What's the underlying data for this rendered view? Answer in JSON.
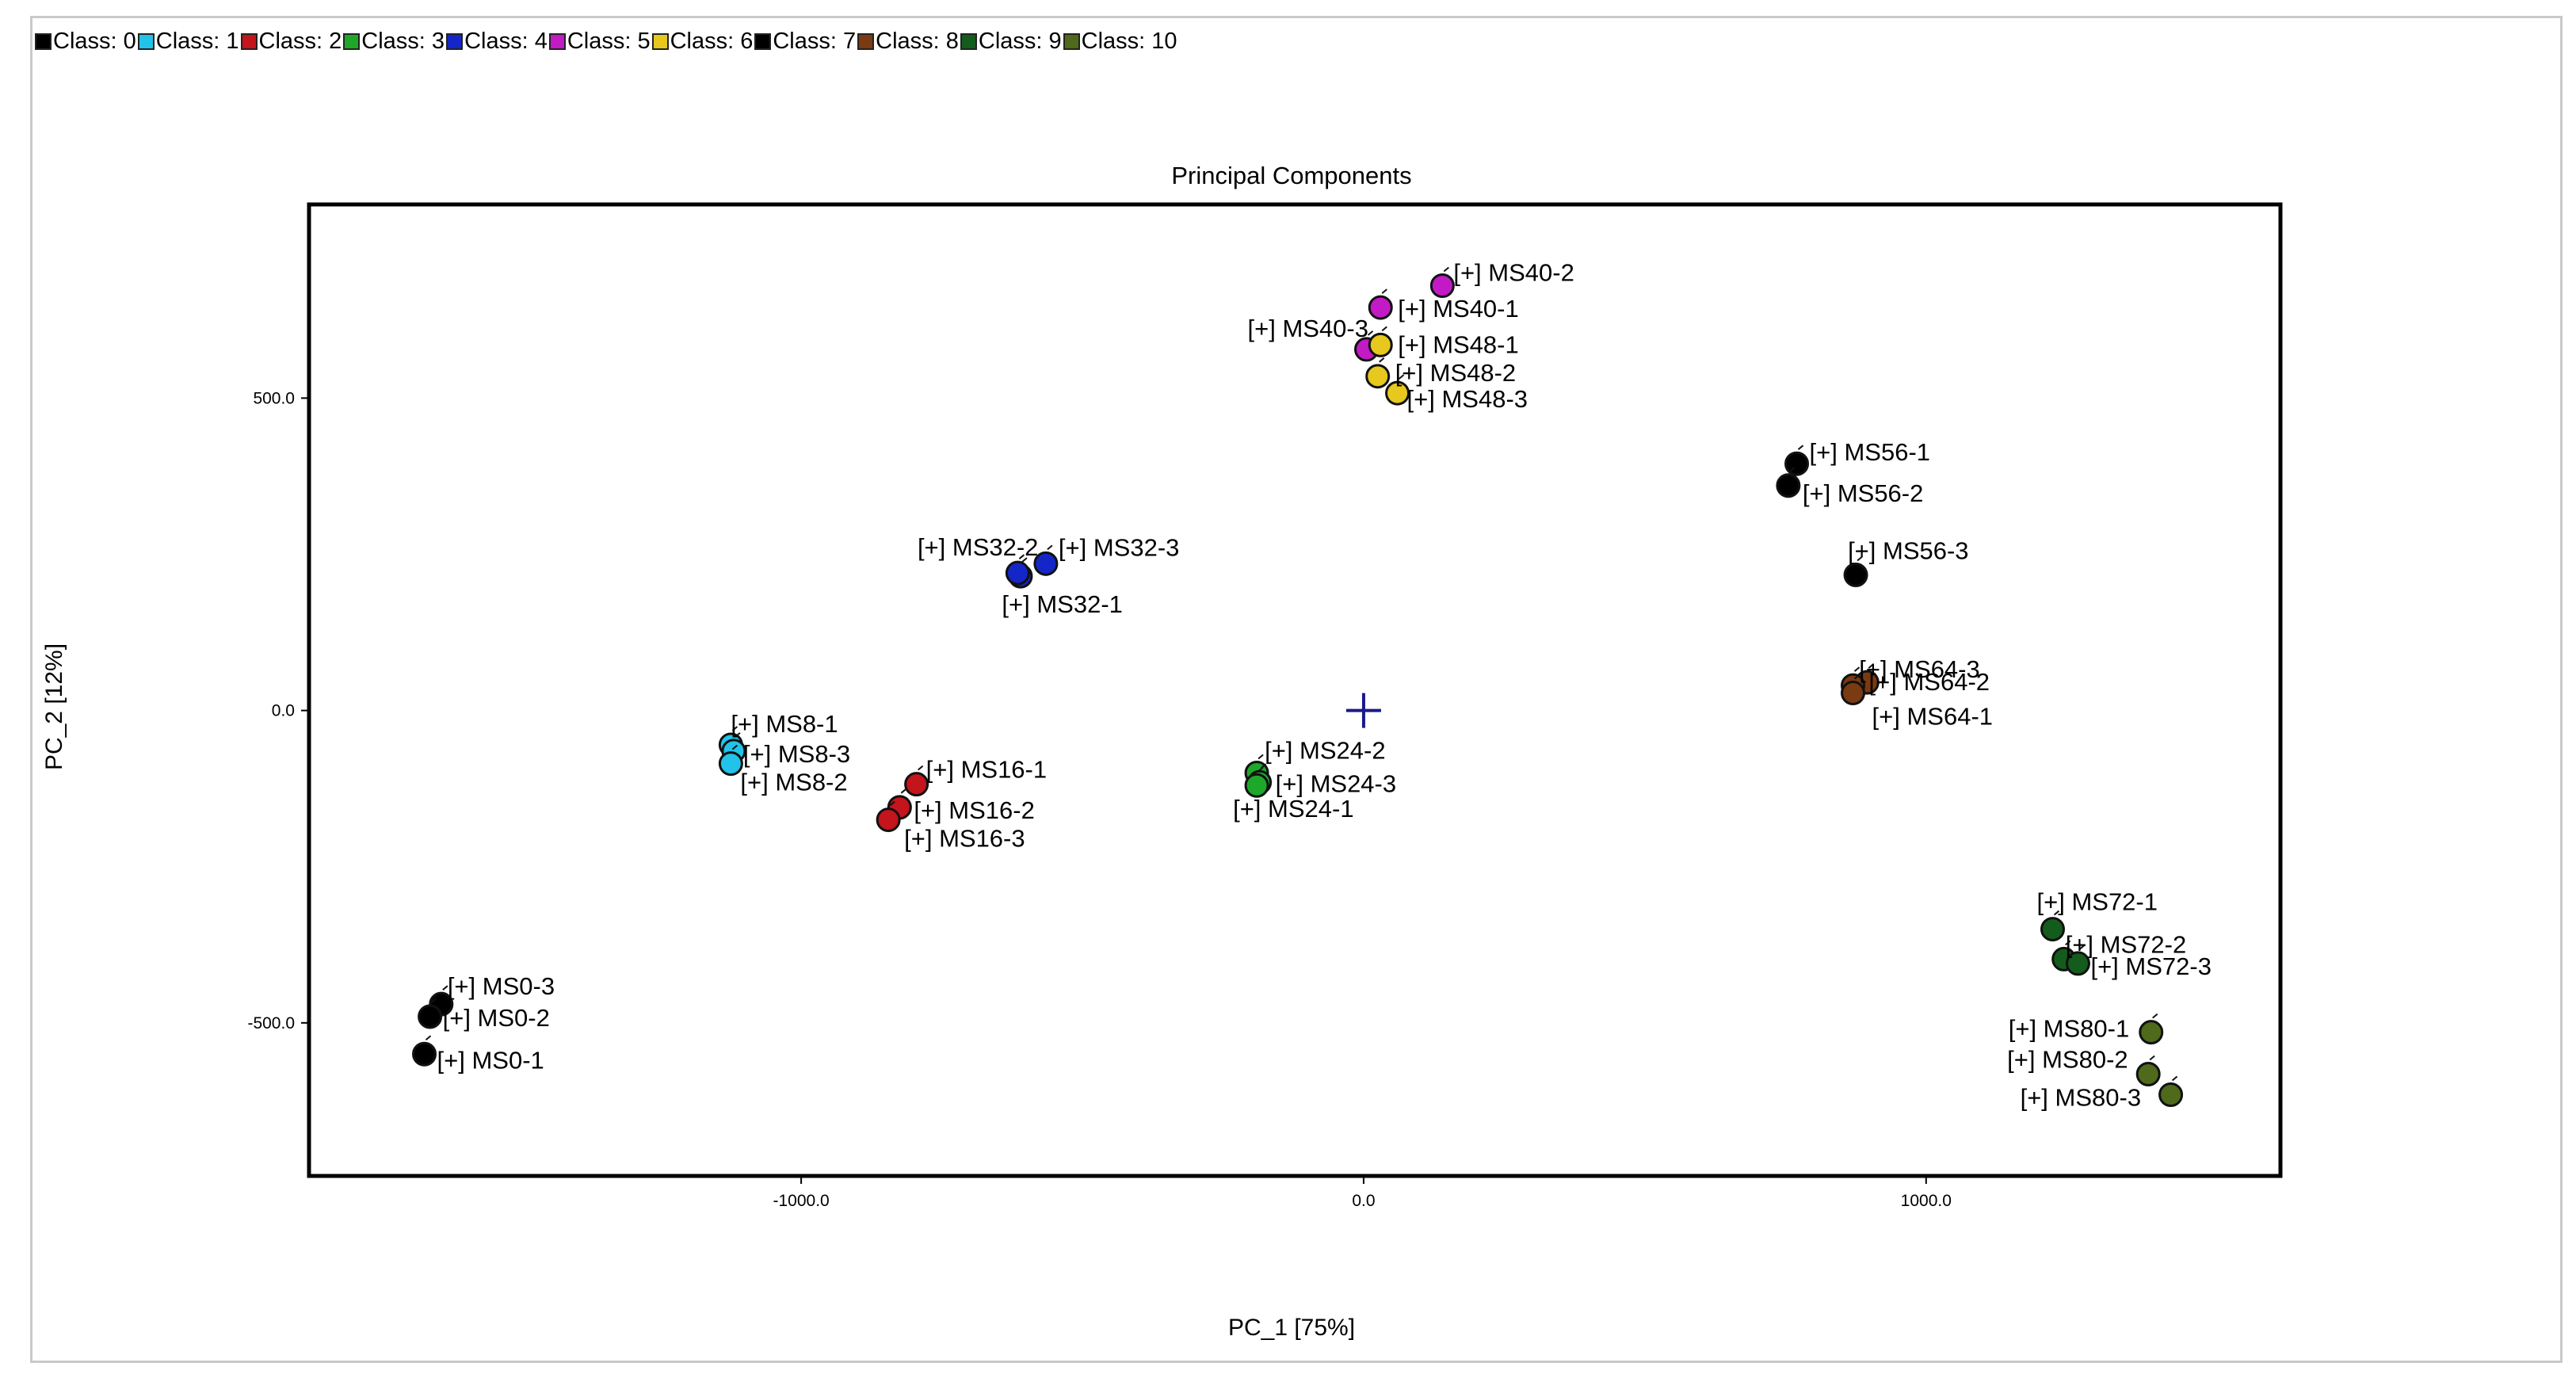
{
  "legend": {
    "items": [
      {
        "label": "Class: 0",
        "color": "#000000"
      },
      {
        "label": "Class: 1",
        "color": "#22c3e8"
      },
      {
        "label": "Class: 2",
        "color": "#c4141c"
      },
      {
        "label": "Class: 3",
        "color": "#1ea82a"
      },
      {
        "label": "Class: 4",
        "color": "#1526c8"
      },
      {
        "label": "Class: 5",
        "color": "#c21ac4"
      },
      {
        "label": "Class: 6",
        "color": "#e6c81e"
      },
      {
        "label": "Class: 7",
        "color": "#000000"
      },
      {
        "label": "Class: 8",
        "color": "#7a3a12"
      },
      {
        "label": "Class: 9",
        "color": "#145c1c"
      },
      {
        "label": "Class: 10",
        "color": "#4e6a1a"
      }
    ]
  },
  "chart_data": {
    "type": "scatter",
    "title": "Principal Components",
    "xlabel": "PC_1 [75%]",
    "ylabel": "PC_2 [12%]",
    "xlim": [
      -1875,
      1630
    ],
    "ylim": [
      -745,
      810
    ],
    "xticks": [
      {
        "value": -1000,
        "label": "-1000.0"
      },
      {
        "value": 0,
        "label": "0.0"
      },
      {
        "value": 1000,
        "label": "1000.0"
      }
    ],
    "yticks": [
      {
        "value": 500,
        "label": "500.0"
      },
      {
        "value": 0,
        "label": "0.0"
      },
      {
        "value": -500,
        "label": "-500.0"
      }
    ],
    "origin_marker": {
      "x": 0,
      "y": 0,
      "color": "#1a1a8c"
    },
    "series": [
      {
        "color": "#000000",
        "points": [
          {
            "x": -1640,
            "y": -470,
            "label": "[+] MS0-3"
          },
          {
            "x": -1660,
            "y": -490,
            "label": "[+] MS0-2"
          },
          {
            "x": -1670,
            "y": -550,
            "label": "[+] MS0-1"
          }
        ]
      },
      {
        "color": "#22c3e8",
        "points": [
          {
            "x": -1125,
            "y": -55,
            "label": "[+] MS8-1"
          },
          {
            "x": -1120,
            "y": -65,
            "label": "[+] MS8-3"
          },
          {
            "x": -1125,
            "y": -85,
            "label": "[+] MS8-2"
          }
        ]
      },
      {
        "color": "#c4141c",
        "points": [
          {
            "x": -795,
            "y": -118,
            "label": "[+] MS16-1"
          },
          {
            "x": -825,
            "y": -155,
            "label": "[+] MS16-2"
          },
          {
            "x": -845,
            "y": -175,
            "label": "[+] MS16-3"
          }
        ]
      },
      {
        "color": "#1ea82a",
        "points": [
          {
            "x": -190,
            "y": -100,
            "label": "[+] MS24-2"
          },
          {
            "x": -185,
            "y": -115,
            "label": "[+] MS24-3"
          },
          {
            "x": -190,
            "y": -120,
            "label": "[+] MS24-1"
          }
        ]
      },
      {
        "color": "#1526c8",
        "points": [
          {
            "x": -610,
            "y": 215,
            "label": "[+] MS32-2"
          },
          {
            "x": -565,
            "y": 235,
            "label": "[+] MS32-3"
          },
          {
            "x": -615,
            "y": 220,
            "label": "[+] MS32-1"
          }
        ]
      },
      {
        "color": "#c21ac4",
        "points": [
          {
            "x": 140,
            "y": 680,
            "label": "[+] MS40-2"
          },
          {
            "x": 30,
            "y": 645,
            "label": "[+] MS40-1"
          },
          {
            "x": 5,
            "y": 578,
            "label": "[+] MS40-3"
          }
        ]
      },
      {
        "color": "#e6c81e",
        "points": [
          {
            "x": 30,
            "y": 585,
            "label": "[+] MS48-1"
          },
          {
            "x": 25,
            "y": 535,
            "label": "[+] MS48-2"
          },
          {
            "x": 60,
            "y": 508,
            "label": "[+] MS48-3"
          }
        ]
      },
      {
        "color": "#000000",
        "points": [
          {
            "x": 770,
            "y": 395,
            "label": "[+] MS56-1"
          },
          {
            "x": 755,
            "y": 360,
            "label": "[+] MS56-2"
          },
          {
            "x": 875,
            "y": 217,
            "label": "[+] MS56-3"
          }
        ]
      },
      {
        "color": "#7a3a12",
        "points": [
          {
            "x": 895,
            "y": 45,
            "label": "[+] MS64-3"
          },
          {
            "x": 870,
            "y": 40,
            "label": "[+] MS64-2"
          },
          {
            "x": 870,
            "y": 28,
            "label": "[+] MS64-1"
          }
        ]
      },
      {
        "color": "#145c1c",
        "points": [
          {
            "x": 1225,
            "y": -350,
            "label": "[+] MS72-1"
          },
          {
            "x": 1245,
            "y": -398,
            "label": "[+] MS72-2"
          },
          {
            "x": 1270,
            "y": -405,
            "label": "[+] MS72-3"
          }
        ]
      },
      {
        "color": "#4e6a1a",
        "points": [
          {
            "x": 1400,
            "y": -515,
            "label": "[+] MS80-1"
          },
          {
            "x": 1395,
            "y": -582,
            "label": "[+] MS80-2"
          },
          {
            "x": 1435,
            "y": -615,
            "label": "[+] MS80-3"
          }
        ]
      }
    ]
  }
}
